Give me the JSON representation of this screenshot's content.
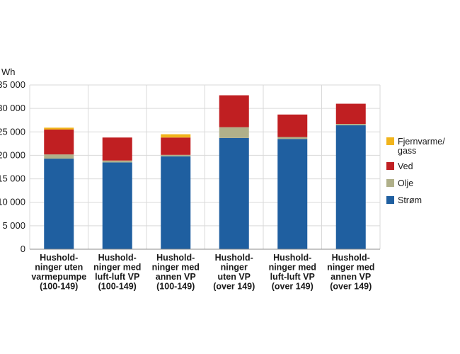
{
  "chart_data": {
    "type": "bar",
    "stacked": true,
    "title": "",
    "ylabel": "Wh",
    "ylim": [
      0,
      35000
    ],
    "yticks": [
      0,
      5000,
      10000,
      15000,
      20000,
      25000,
      30000,
      35000
    ],
    "ytick_labels": [
      "0",
      "5 000",
      "10 000",
      "15 000",
      "20 000",
      "25 000",
      "30 000",
      "35 000"
    ],
    "grid": true,
    "legend_position": "right",
    "categories": [
      [
        "Hushold-",
        "ninger uten",
        "varmepumpe",
        "(100-149)"
      ],
      [
        "Hushold-",
        "ninger med",
        "luft-luft VP",
        "(100-149)"
      ],
      [
        "Hushold-",
        "ninger med",
        "annen VP",
        "(100-149)"
      ],
      [
        "Hushold-",
        "ninger",
        "uten VP",
        "(over 149)"
      ],
      [
        "Hushold-",
        "ninger med",
        "luft-luft VP",
        "(over 149)"
      ],
      [
        "Hushold-",
        "ninger med",
        "annen VP",
        "(over 149)"
      ]
    ],
    "series": [
      {
        "name": "Strøm",
        "color": "#1f5fa0",
        "values": [
          19300,
          18500,
          19800,
          23700,
          23500,
          26400
        ]
      },
      {
        "name": "Olje",
        "color": "#b0b08a",
        "values": [
          900,
          400,
          300,
          2300,
          400,
          300
        ]
      },
      {
        "name": "Ved",
        "color": "#c01f22",
        "values": [
          5300,
          4900,
          3700,
          6800,
          4800,
          4300
        ]
      },
      {
        "name": "Fjernvarme/ gass",
        "color": "#f1b41c",
        "values": [
          400,
          0,
          700,
          0,
          0,
          0
        ]
      }
    ],
    "legend_order": [
      3,
      2,
      1,
      0
    ]
  }
}
